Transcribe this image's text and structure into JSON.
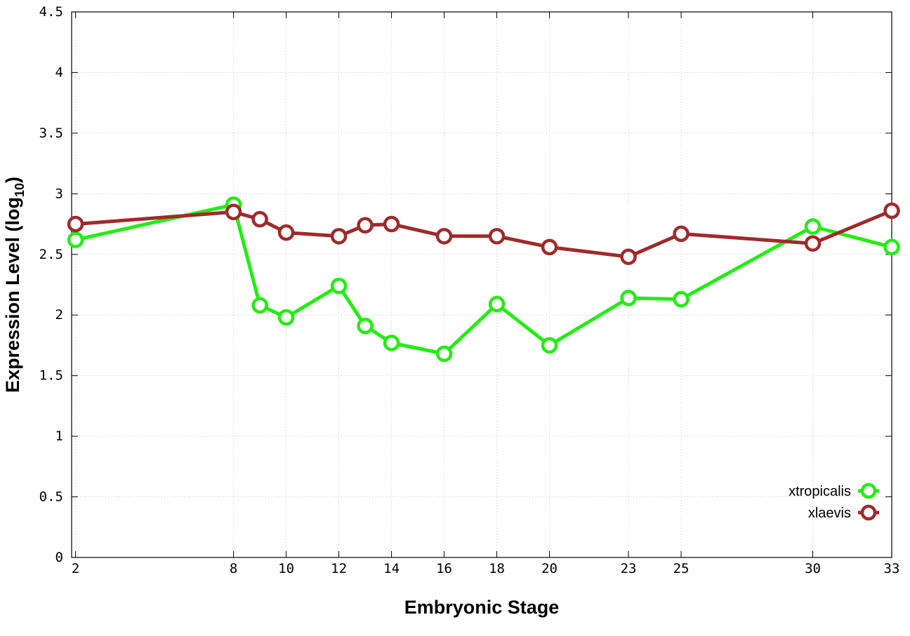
{
  "chart_data": {
    "type": "line",
    "xlabel": "Embryonic Stage",
    "ylabel": "Expression Level (log",
    "ylabel_sub": "10",
    "ylabel_close": ")",
    "xlim": [
      1.85,
      33
    ],
    "ylim": [
      0,
      4.5
    ],
    "x_ticks": [
      2,
      8,
      10,
      12,
      14,
      16,
      18,
      20,
      23,
      25,
      30,
      33
    ],
    "x_tick_labels": [
      "2",
      "8",
      "10",
      "12",
      "14",
      "16",
      "18",
      "20",
      "23",
      "25",
      "30",
      "33"
    ],
    "y_ticks": [
      0,
      0.5,
      1,
      1.5,
      2,
      2.5,
      3,
      3.5,
      4,
      4.5
    ],
    "y_tick_labels": [
      "0",
      "0.5",
      "1",
      "1.5",
      "2",
      "2.5",
      "3",
      "3.5",
      "4",
      "4.5"
    ],
    "grid": true,
    "legend_position": "bottom-right",
    "series": [
      {
        "name": "xtropicalis",
        "color": "#22ee11",
        "x": [
          2,
          8,
          9,
          10,
          12,
          13,
          14,
          16,
          18,
          20,
          23,
          25,
          30,
          33
        ],
        "y": [
          2.62,
          2.91,
          2.08,
          1.98,
          2.24,
          1.91,
          1.77,
          1.68,
          2.09,
          1.75,
          2.14,
          2.13,
          2.73,
          2.56
        ]
      },
      {
        "name": "xlaevis",
        "color": "#9e2b2b",
        "x": [
          2,
          8,
          9,
          10,
          12,
          13,
          14,
          16,
          18,
          20,
          23,
          25,
          30,
          33
        ],
        "y": [
          2.75,
          2.85,
          2.79,
          2.68,
          2.65,
          2.74,
          2.75,
          2.65,
          2.65,
          2.56,
          2.48,
          2.67,
          2.59,
          2.86
        ]
      }
    ]
  }
}
